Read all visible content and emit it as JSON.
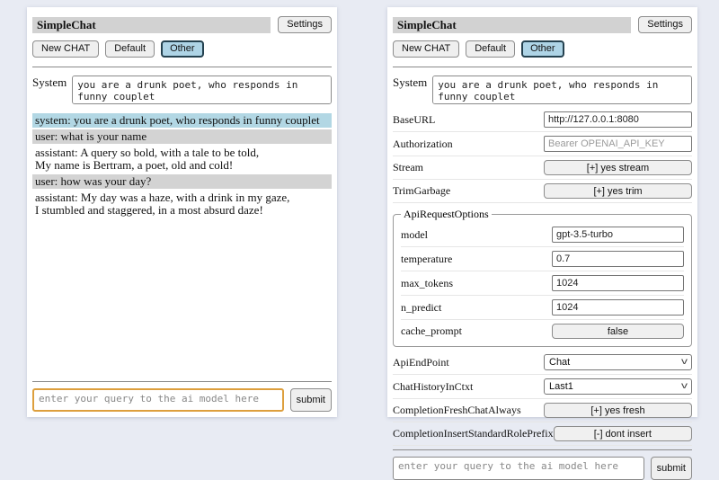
{
  "colors": {
    "page_background": "#e8ebf3",
    "titlebar_gray": "#d2d2d2",
    "system_msg_blue": "#b2d7e4",
    "user_msg_gray": "#d3d3d3",
    "selected_session_blue": "#aed4e6",
    "focused_input_orange": "#dd9f3d"
  },
  "left": {
    "header": {
      "title": "SimpleChat",
      "settings_label": "Settings"
    },
    "toolbar": {
      "new_chat_label": "New CHAT",
      "sessions": [
        "Default",
        "Other"
      ],
      "selected_session": "Other"
    },
    "system": {
      "label": "System",
      "value": "you are a drunk poet, who responds in funny couplet"
    },
    "messages": [
      {
        "role": "system",
        "text": "system: you are a drunk poet, who responds in funny couplet"
      },
      {
        "role": "user",
        "text": "user: what is your name"
      },
      {
        "role": "assistant",
        "text": "assistant: A query so bold, with a tale to be told,\nMy name is Bertram, a poet, old and cold!"
      },
      {
        "role": "user",
        "text": "user: how was your day?"
      },
      {
        "role": "assistant",
        "text": "assistant: My day was a haze, with a drink in my gaze,\nI stumbled and staggered, in a most absurd daze!"
      }
    ],
    "query": {
      "placeholder": "enter your query to the ai model here",
      "submit_label": "submit"
    }
  },
  "right": {
    "header": {
      "title": "SimpleChat",
      "settings_label": "Settings"
    },
    "toolbar": {
      "new_chat_label": "New CHAT",
      "sessions": [
        "Default",
        "Other"
      ],
      "selected_session": "Other"
    },
    "system": {
      "label": "System",
      "value": "you are a drunk poet, who responds in funny couplet"
    },
    "settings": {
      "base_url": {
        "label": "BaseURL",
        "value": "http://127.0.0.1:8080"
      },
      "authorization": {
        "label": "Authorization",
        "placeholder": "Bearer OPENAI_API_KEY"
      },
      "stream": {
        "label": "Stream",
        "value": "[+] yes stream"
      },
      "trim_garbage": {
        "label": "TrimGarbage",
        "value": "[+] yes trim"
      },
      "api_request_options": {
        "legend": "ApiRequestOptions",
        "model": {
          "label": "model",
          "value": "gpt-3.5-turbo"
        },
        "temperature": {
          "label": "temperature",
          "value": "0.7"
        },
        "max_tokens": {
          "label": "max_tokens",
          "value": "1024"
        },
        "n_predict": {
          "label": "n_predict",
          "value": "1024"
        },
        "cache_prompt": {
          "label": "cache_prompt",
          "value": "false"
        }
      },
      "api_endpoint": {
        "label": "ApiEndPoint",
        "value": "Chat"
      },
      "chat_history_in_ctxt": {
        "label": "ChatHistoryInCtxt",
        "value": "Last1"
      },
      "completion_fresh_chat_always": {
        "label": "CompletionFreshChatAlways",
        "value": "[+] yes fresh"
      },
      "completion_insert_standard_role_prefix": {
        "label": "CompletionInsertStandardRolePrefix",
        "value": "[-] dont insert"
      }
    },
    "query": {
      "placeholder": "enter your query to the ai model here",
      "submit_label": "submit"
    }
  }
}
